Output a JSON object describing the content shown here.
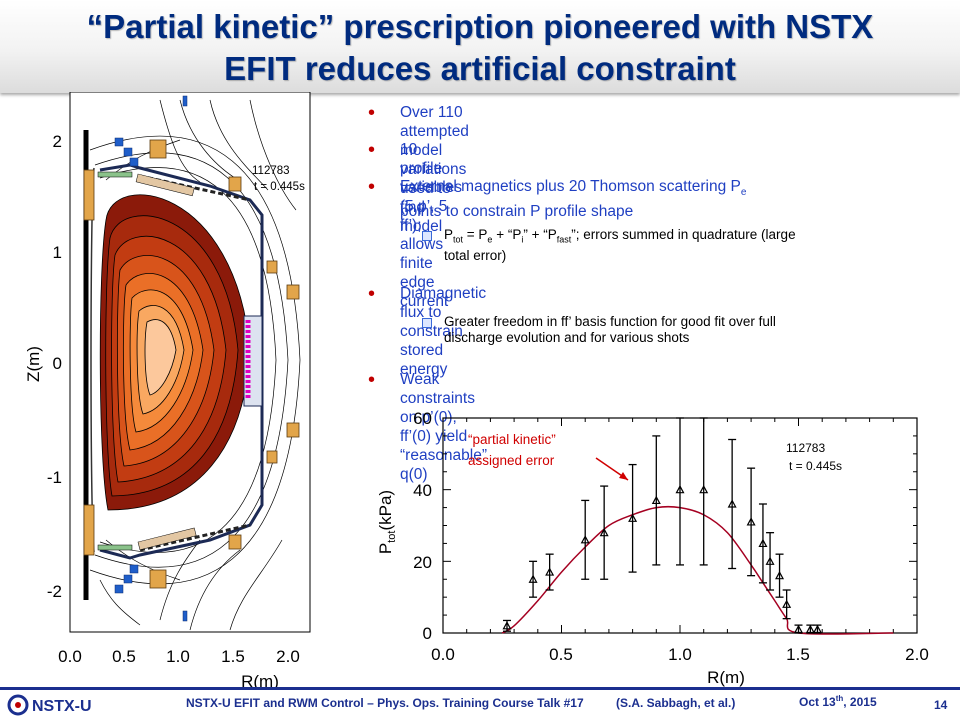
{
  "slide": {
    "title_line1": "“Partial kinetic” prescription pioneered with NSTX",
    "title_line2": "EFIT reduces artificial constraint"
  },
  "bullets": [
    {
      "text": "Over 110 attempted model variations used to find model"
    },
    {
      "text": "10 profile variables (5 p’, 5 ff’); allows finite edge current"
    },
    {
      "text_line1": "External magnetics plus 20 Thomson scattering P",
      "sub": "e",
      "text_line2": "points to constrain P profile shape"
    },
    {
      "text": "Diamagnetic flux to constrain stored energy"
    },
    {
      "text": "Weak constraints on p’(0), ff’(0) yield “reasonable” q(0)"
    }
  ],
  "sub_bullets": {
    "ptot_line1_a": "P",
    "ptot_line1_sub1": "tot",
    "ptot_line1_b": " = P",
    "ptot_line1_sub2": "e",
    "ptot_line1_c": " + “P",
    "ptot_line1_sub3": "i",
    "ptot_line1_d": "” + “P",
    "ptot_line1_sub4": "fast",
    "ptot_line1_e": "”; errors summed in quadrature (large",
    "ptot_line2": "total error)",
    "freedom_line1": "Greater freedom in ff’ basis function for good fit over full",
    "freedom_line2": "discharge evolution and for various shots"
  },
  "equilibrium_plot": {
    "shot_label": "112783",
    "time_label": "t = 0.445s",
    "xlabel": "R(m)",
    "ylabel": "Z(m)",
    "x_ticks": [
      "0.0",
      "0.5",
      "1.0",
      "1.5",
      "2.0"
    ],
    "y_ticks": [
      "2",
      "1",
      "0",
      "-1",
      "-2"
    ],
    "x_range": [
      0.0,
      2.2
    ],
    "y_range": [
      -2.4,
      2.4
    ]
  },
  "chart_data": {
    "type": "scatter",
    "xlabel": "R(m)",
    "ylabel_main": "P",
    "ylabel_sub": "tot",
    "ylabel_unit": "(kPa)",
    "annotation_line1": "“partial kinetic”",
    "annotation_line2": "assigned error",
    "shot_label": "112783",
    "time_label": "t = 0.445s",
    "xlim": [
      0.0,
      2.0
    ],
    "ylim": [
      0,
      60
    ],
    "x_ticks": [
      "0.0",
      "0.5",
      "1.0",
      "1.5",
      "2.0"
    ],
    "y_ticks": [
      "0",
      "20",
      "40",
      "60"
    ],
    "points": [
      {
        "x": 0.27,
        "y": 2,
        "err": 1.5
      },
      {
        "x": 0.38,
        "y": 15,
        "err": 5
      },
      {
        "x": 0.45,
        "y": 17,
        "err": 5
      },
      {
        "x": 0.6,
        "y": 26,
        "err": 11
      },
      {
        "x": 0.68,
        "y": 28,
        "err": 13
      },
      {
        "x": 0.8,
        "y": 32,
        "err": 15
      },
      {
        "x": 0.9,
        "y": 37,
        "err": 18
      },
      {
        "x": 1.0,
        "y": 40,
        "err": 21
      },
      {
        "x": 1.1,
        "y": 40,
        "err": 21
      },
      {
        "x": 1.22,
        "y": 36,
        "err": 18
      },
      {
        "x": 1.3,
        "y": 31,
        "err": 15
      },
      {
        "x": 1.35,
        "y": 25,
        "err": 11
      },
      {
        "x": 1.38,
        "y": 20,
        "err": 8
      },
      {
        "x": 1.42,
        "y": 16,
        "err": 6
      },
      {
        "x": 1.45,
        "y": 8,
        "err": 4
      },
      {
        "x": 1.5,
        "y": 1,
        "err": 1.2
      },
      {
        "x": 1.55,
        "y": 1,
        "err": 1.2
      },
      {
        "x": 1.58,
        "y": 1,
        "err": 1.2
      }
    ],
    "fit": {
      "x": [
        0.25,
        0.3,
        0.4,
        0.5,
        0.6,
        0.7,
        0.8,
        0.9,
        1.0,
        1.1,
        1.2,
        1.3,
        1.35,
        1.4,
        1.45,
        1.5,
        1.9
      ],
      "y": [
        0,
        2,
        9,
        17,
        24,
        30,
        33,
        35,
        35,
        33,
        28,
        19,
        14,
        9,
        4,
        0,
        0
      ]
    }
  },
  "footer": {
    "logo_text": "NSTX-U",
    "course_text": "NSTX-U EFIT and RWM Control – Phys. Ops. Training Course Talk #17",
    "author_text": "(S.A. Sabbagh, et al.)",
    "date_main": "Oct 13",
    "date_sup": "th",
    "date_year": ", 2015",
    "page_number": "14"
  },
  "colors": {
    "title": "#002b7f",
    "bullet_dot": "#c00000",
    "bullet_text": "#1f3fc2",
    "fit_line": "#a50021",
    "annotation": "#d00000",
    "footer": "#1b2f8f"
  }
}
